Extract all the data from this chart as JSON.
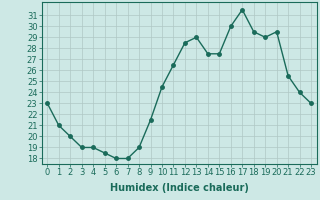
{
  "x": [
    0,
    1,
    2,
    3,
    4,
    5,
    6,
    7,
    8,
    9,
    10,
    11,
    12,
    13,
    14,
    15,
    16,
    17,
    18,
    19,
    20,
    21,
    22,
    23
  ],
  "y": [
    23,
    21,
    20,
    19,
    19,
    18.5,
    18,
    18,
    19,
    21.5,
    24.5,
    26.5,
    28.5,
    29,
    27.5,
    27.5,
    30,
    31.5,
    29.5,
    29,
    29.5,
    25.5,
    24,
    23
  ],
  "xlabel": "Humidex (Indice chaleur)",
  "xlim": [
    -0.5,
    23.5
  ],
  "ylim": [
    17.5,
    32.2
  ],
  "yticks": [
    18,
    19,
    20,
    21,
    22,
    23,
    24,
    25,
    26,
    27,
    28,
    29,
    30,
    31
  ],
  "xticks": [
    0,
    1,
    2,
    3,
    4,
    5,
    6,
    7,
    8,
    9,
    10,
    11,
    12,
    13,
    14,
    15,
    16,
    17,
    18,
    19,
    20,
    21,
    22,
    23
  ],
  "line_color": "#1a6b5a",
  "marker_color": "#1a6b5a",
  "bg_color": "#cde8e5",
  "grid_color": "#b0c8c5",
  "axes_bg": "#cde8e5",
  "xlabel_fontsize": 7,
  "tick_fontsize": 6,
  "line_width": 1.0,
  "marker_size": 2.5
}
